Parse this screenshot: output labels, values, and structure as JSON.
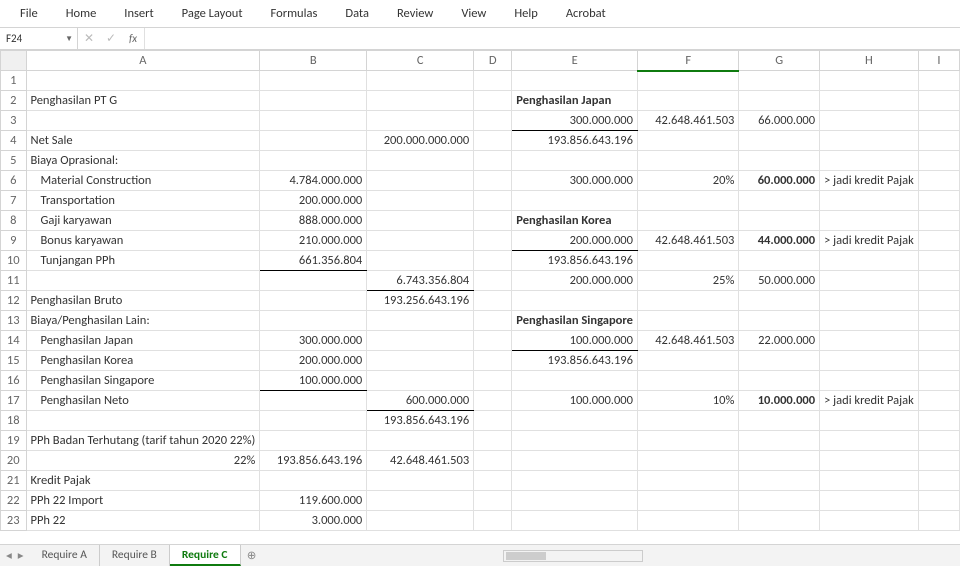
{
  "ribbon": [
    "File",
    "Home",
    "Insert",
    "Page Layout",
    "Formulas",
    "Data",
    "Review",
    "View",
    "Help",
    "Acrobat"
  ],
  "nameBox": "F24",
  "fx": "fx",
  "colHeaders": [
    "A",
    "B",
    "C",
    "D",
    "E",
    "F",
    "G",
    "H",
    "I"
  ],
  "rows": [
    {
      "n": 1
    },
    {
      "n": 2,
      "A": "Penghasilan PT G",
      "E": "Penghasilan Japan",
      "Ebold": true
    },
    {
      "n": 3,
      "E": "300.000.000",
      "Eul": true,
      "F": "42.648.461.503",
      "G": "66.000.000"
    },
    {
      "n": 4,
      "A": "Net Sale",
      "C": "200.000.000.000",
      "E": "193.856.643.196"
    },
    {
      "n": 5,
      "A": "Biaya Oprasional:"
    },
    {
      "n": 6,
      "Aind": true,
      "A": "Material Construction",
      "B": "4.784.000.000",
      "E": "300.000.000",
      "F": "20%",
      "G": "60.000.000",
      "Gbold": true,
      "H": "> jadi kredit Pajak"
    },
    {
      "n": 7,
      "Aind": true,
      "A": "Transportation",
      "B": "200.000.000"
    },
    {
      "n": 8,
      "Aind": true,
      "A": "Gaji karyawan",
      "B": "888.000.000",
      "E": "Penghasilan Korea",
      "Ebold": true,
      "Eleft": true
    },
    {
      "n": 9,
      "Aind": true,
      "A": "Bonus karyawan",
      "B": "210.000.000",
      "E": "200.000.000",
      "Eul": true,
      "F": "42.648.461.503",
      "G": "44.000.000",
      "Gbold": true,
      "H": "> jadi kredit Pajak"
    },
    {
      "n": 10,
      "Aind": true,
      "A": "Tunjangan PPh",
      "B": "661.356.804",
      "Bul": true,
      "E": "193.856.643.196"
    },
    {
      "n": 11,
      "C": "6.743.356.804",
      "Cul": true,
      "E": "200.000.000",
      "F": "25%",
      "G": "50.000.000"
    },
    {
      "n": 12,
      "A": "Penghasilan Bruto",
      "C": "193.256.643.196"
    },
    {
      "n": 13,
      "A": "Biaya/Penghasilan Lain:",
      "E": "Penghasilan Singapore",
      "Ebold": true,
      "Eleft": true
    },
    {
      "n": 14,
      "Aind": true,
      "A": "Penghasilan Japan",
      "B": "300.000.000",
      "E": "100.000.000",
      "Eul": true,
      "F": "42.648.461.503",
      "G": "22.000.000"
    },
    {
      "n": 15,
      "Aind": true,
      "A": "Penghasilan Korea",
      "B": "200.000.000",
      "E": "193.856.643.196"
    },
    {
      "n": 16,
      "Aind": true,
      "A": "Penghasilan Singapore",
      "B": "100.000.000",
      "Bul": true
    },
    {
      "n": 17,
      "Aind": true,
      "A": "Penghasilan Neto",
      "C": "600.000.000",
      "Cul": true,
      "E": "100.000.000",
      "F": "10%",
      "G": "10.000.000",
      "Gbold": true,
      "H": "> jadi kredit Pajak"
    },
    {
      "n": 18,
      "C": "193.856.643.196"
    },
    {
      "n": 19,
      "A": "PPh Badan Terhutang (tarif tahun 2020 22%)"
    },
    {
      "n": 20,
      "A": "22%",
      "Aright": true,
      "B": "193.856.643.196",
      "C": "42.648.461.503"
    },
    {
      "n": 21,
      "A": "Kredit Pajak"
    },
    {
      "n": 22,
      "A": "PPh 22 Import",
      "B": "119.600.000"
    },
    {
      "n": 23,
      "A": "PPh 22",
      "B": "3.000.000"
    }
  ],
  "selectedCell": "F24",
  "tabs": [
    "Require A",
    "Require B",
    "Require C"
  ],
  "activeTab": "Require C"
}
